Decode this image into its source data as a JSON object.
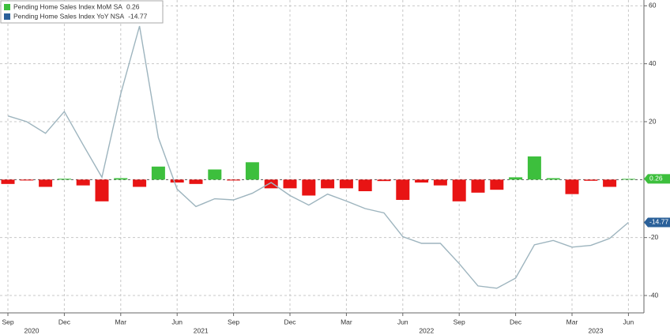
{
  "chart_data": {
    "type": "bar_line",
    "categories": [
      "Sep",
      null,
      null,
      "Dec",
      null,
      null,
      "Mar",
      null,
      null,
      "Jun",
      null,
      null,
      "Sep",
      null,
      null,
      "Dec",
      null,
      null,
      "Mar",
      null,
      null,
      "Jun",
      null,
      null,
      "Sep",
      null,
      null,
      "Dec",
      null,
      null,
      "Mar",
      null,
      null,
      "Jun"
    ],
    "category_years": [
      "2020",
      null,
      null,
      null,
      null,
      null,
      null,
      null,
      null,
      "2021",
      null,
      null,
      null,
      null,
      null,
      null,
      null,
      null,
      null,
      null,
      null,
      "2022",
      null,
      null,
      null,
      null,
      null,
      null,
      null,
      null,
      "2023",
      null,
      null,
      null
    ],
    "series": [
      {
        "name": "Pending Home Sales Index MoM SA",
        "type": "bar",
        "color": "#3dbf3d",
        "negative_color": "#e81414",
        "values": [
          -1.5,
          -0.3,
          -2.5,
          0.3,
          -2,
          -7.5,
          0.5,
          -2.5,
          4.5,
          -1,
          -1.5,
          3.5,
          -0.3,
          6,
          -3,
          -3,
          -5.5,
          -3,
          -3,
          -4,
          -0.5,
          -7,
          -1,
          -2,
          -7.5,
          -4.5,
          -3.5,
          0.8,
          8,
          0.5,
          -5,
          -0.4,
          -2.5,
          0.26
        ]
      },
      {
        "name": "Pending Home Sales Index YoY NSA",
        "type": "line",
        "color": "#2a6099",
        "line_color": "#9db4be",
        "values": [
          22,
          20,
          16,
          23.5,
          12,
          0.8,
          29.6,
          53,
          14.5,
          -3.3,
          -9.3,
          -6.6,
          -7,
          -4.7,
          -1,
          -5.5,
          -8.8,
          -5,
          -7.4,
          -10,
          -11.5,
          -19.7,
          -22,
          -22,
          -29,
          -36.7,
          -37.5,
          -34,
          -22.5,
          -21,
          -23.3,
          -22.7,
          -20.3,
          -14.77
        ]
      }
    ],
    "ylim": [
      -46,
      62
    ],
    "yticks": [
      -40,
      -20,
      20,
      40,
      60
    ],
    "grid": true
  }
}
